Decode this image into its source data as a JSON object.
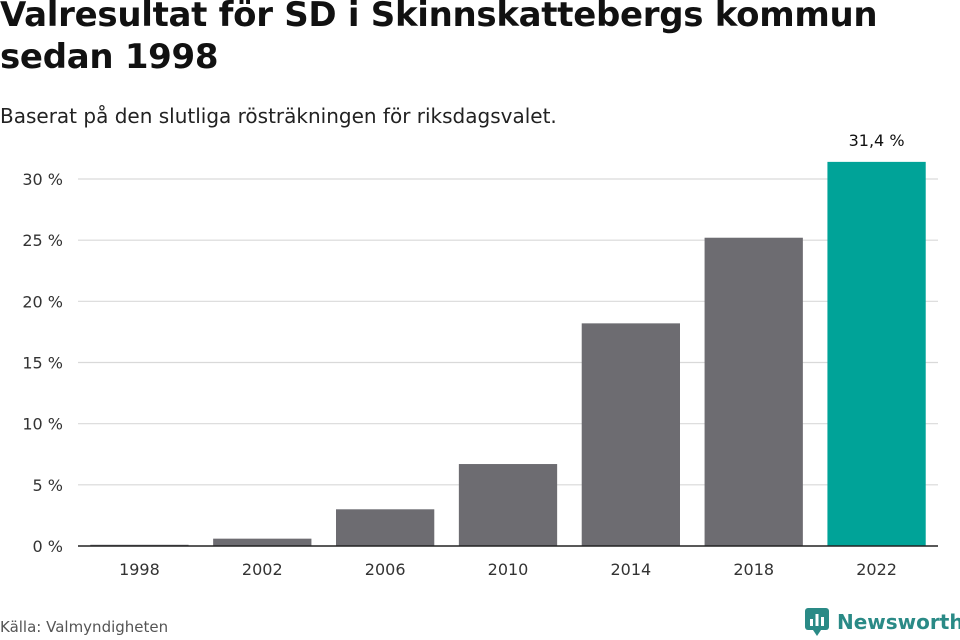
{
  "header": {
    "title": "Valresultat för SD i Skinnskattebergs kommun sedan 1998",
    "subtitle": "Baserat på den slutliga rösträkningen för riksdagsvalet."
  },
  "footer": {
    "source": "Källa: Valmyndigheten",
    "brand": "Newsworthy"
  },
  "colors": {
    "bar": "#6d6c71",
    "highlight": "#00a398",
    "grid": "#d9d9d9",
    "brand": "#2a8a86"
  },
  "chart_data": {
    "type": "bar",
    "categories": [
      "1998",
      "2002",
      "2006",
      "2010",
      "2014",
      "2018",
      "2022"
    ],
    "values": [
      0.1,
      0.6,
      3.0,
      6.7,
      18.2,
      25.2,
      31.4
    ],
    "highlight_index": 6,
    "value_label": "31,4 %",
    "yticks": [
      "0 %",
      "5 %",
      "10 %",
      "15 %",
      "20 %",
      "25 %",
      "30 %"
    ],
    "ylim": [
      0,
      30
    ],
    "grid": true
  }
}
